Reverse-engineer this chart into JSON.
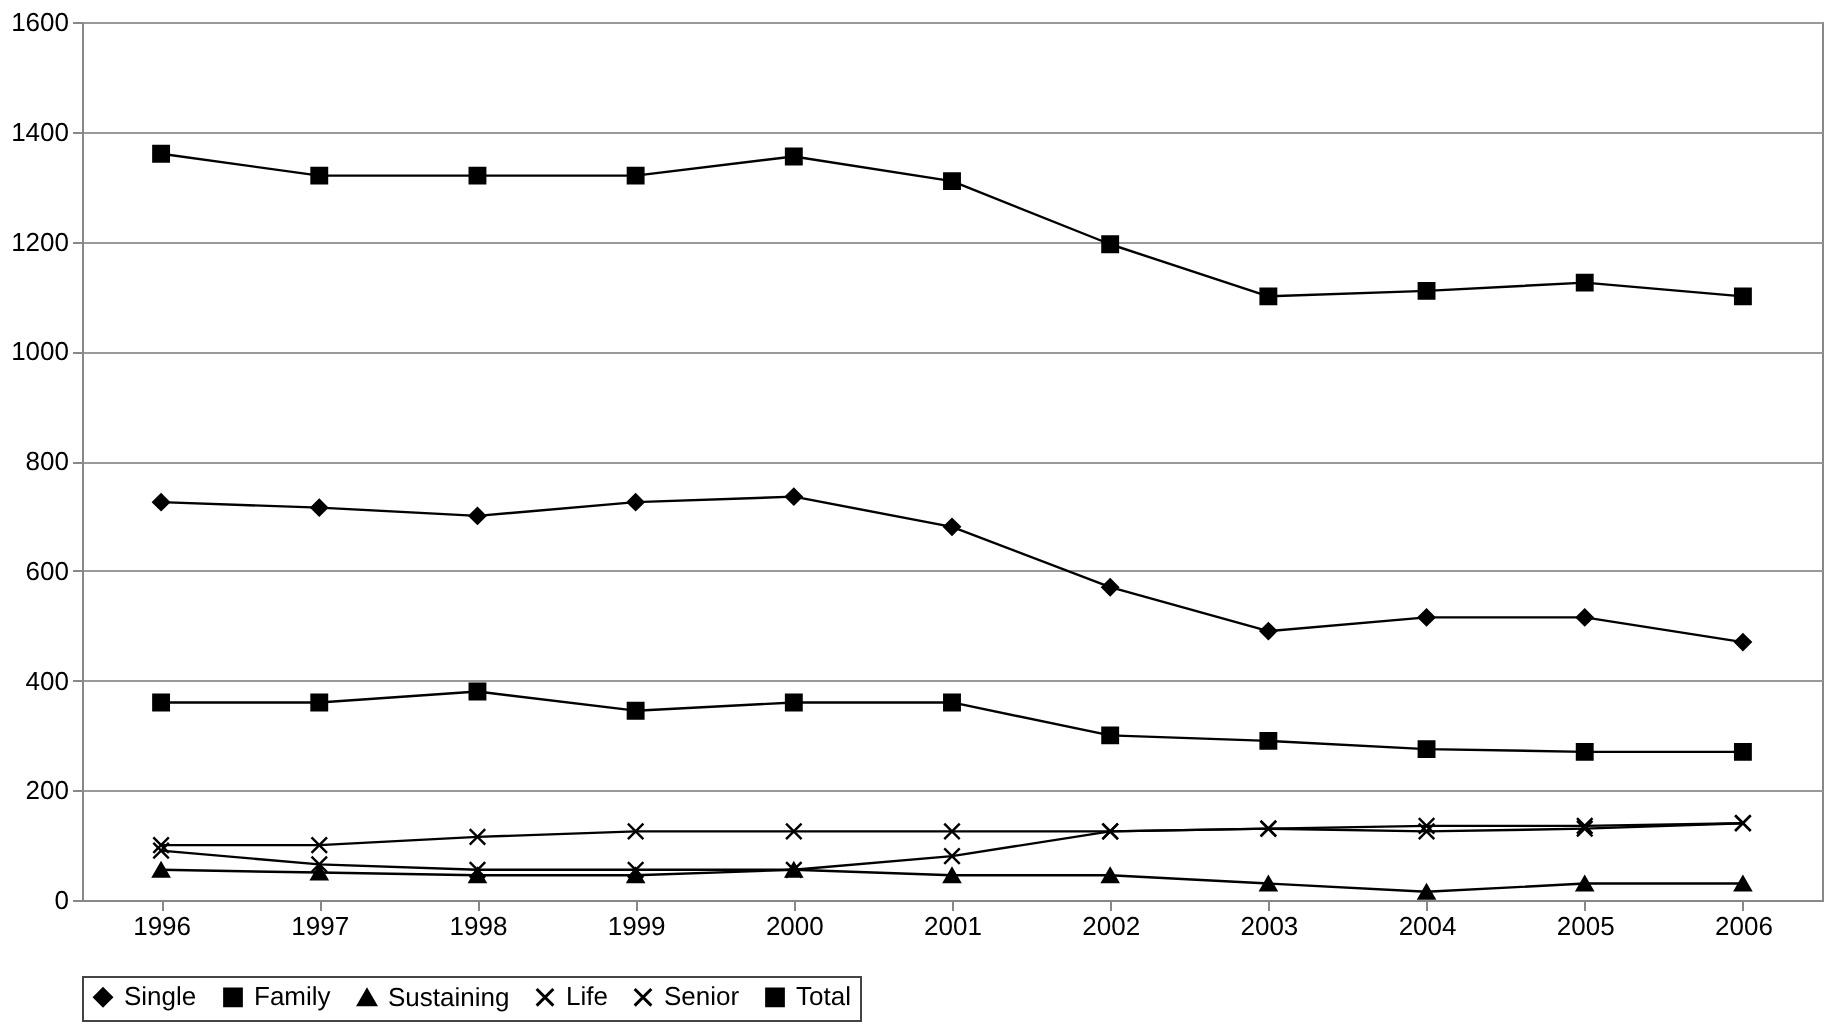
{
  "chart_data": {
    "type": "line",
    "categories": [
      "1996",
      "1997",
      "1998",
      "1999",
      "2000",
      "2001",
      "2002",
      "2003",
      "2004",
      "2005",
      "2006"
    ],
    "series": [
      {
        "name": "Single",
        "color": "#000000",
        "marker": "diamond",
        "values": [
          725,
          715,
          700,
          725,
          735,
          680,
          570,
          490,
          515,
          515,
          470
        ]
      },
      {
        "name": "Family",
        "color": "#000000",
        "marker": "square",
        "values": [
          360,
          360,
          380,
          345,
          360,
          360,
          300,
          290,
          275,
          270,
          270
        ]
      },
      {
        "name": "Sustaining",
        "color": "#000000",
        "marker": "triangle",
        "values": [
          55,
          50,
          45,
          45,
          55,
          45,
          45,
          30,
          15,
          30,
          30
        ]
      },
      {
        "name": "Life",
        "color": "#000000",
        "marker": "cross",
        "values": [
          100,
          100,
          115,
          125,
          125,
          125,
          125,
          130,
          135,
          135,
          140
        ]
      },
      {
        "name": "Senior",
        "color": "#000000",
        "marker": "cross",
        "values": [
          90,
          65,
          55,
          55,
          55,
          80,
          125,
          130,
          125,
          130,
          140
        ]
      },
      {
        "name": "Total",
        "color": "#000000",
        "marker": "square",
        "values": [
          1360,
          1320,
          1320,
          1320,
          1355,
          1310,
          1195,
          1100,
          1110,
          1125,
          1100
        ]
      }
    ],
    "ylim": [
      0,
      1600
    ],
    "yticks": [
      0,
      200,
      400,
      600,
      800,
      1000,
      1200,
      1400,
      1600
    ],
    "grid": "y",
    "legend": "bottom",
    "line_style": "solid"
  }
}
